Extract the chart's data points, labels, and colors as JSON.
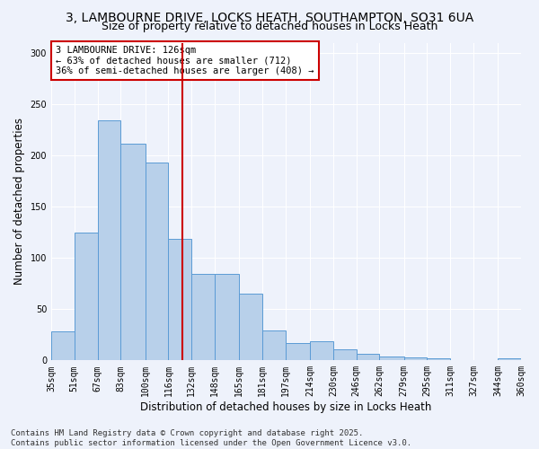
{
  "title": "3, LAMBOURNE DRIVE, LOCKS HEATH, SOUTHAMPTON, SO31 6UA",
  "subtitle": "Size of property relative to detached houses in Locks Heath",
  "xlabel": "Distribution of detached houses by size in Locks Heath",
  "ylabel": "Number of detached properties",
  "bar_color": "#b8d0ea",
  "bar_edge_color": "#5b9bd5",
  "background_color": "#eef2fb",
  "grid_color": "#ffffff",
  "vline_x": 126,
  "vline_color": "#cc0000",
  "annotation_text": "3 LAMBOURNE DRIVE: 126sqm\n← 63% of detached houses are smaller (712)\n36% of semi-detached houses are larger (408) →",
  "annotation_box_color": "#ffffff",
  "annotation_box_edge_color": "#cc0000",
  "bins": [
    35,
    51,
    67,
    83,
    100,
    116,
    132,
    148,
    165,
    181,
    197,
    214,
    230,
    246,
    262,
    279,
    295,
    311,
    327,
    344,
    360
  ],
  "bin_labels": [
    "35sqm",
    "51sqm",
    "67sqm",
    "83sqm",
    "100sqm",
    "116sqm",
    "132sqm",
    "148sqm",
    "165sqm",
    "181sqm",
    "197sqm",
    "214sqm",
    "230sqm",
    "246sqm",
    "262sqm",
    "279sqm",
    "295sqm",
    "311sqm",
    "327sqm",
    "344sqm",
    "360sqm"
  ],
  "values": [
    28,
    125,
    234,
    211,
    193,
    119,
    84,
    84,
    65,
    29,
    17,
    19,
    11,
    6,
    4,
    3,
    2,
    0,
    0,
    2
  ],
  "ylim": [
    0,
    310
  ],
  "yticks": [
    0,
    50,
    100,
    150,
    200,
    250,
    300
  ],
  "footer_text": "Contains HM Land Registry data © Crown copyright and database right 2025.\nContains public sector information licensed under the Open Government Licence v3.0.",
  "title_fontsize": 10,
  "subtitle_fontsize": 9,
  "axis_label_fontsize": 8.5,
  "tick_fontsize": 7,
  "footer_fontsize": 6.5,
  "annotation_fontsize": 7.5
}
